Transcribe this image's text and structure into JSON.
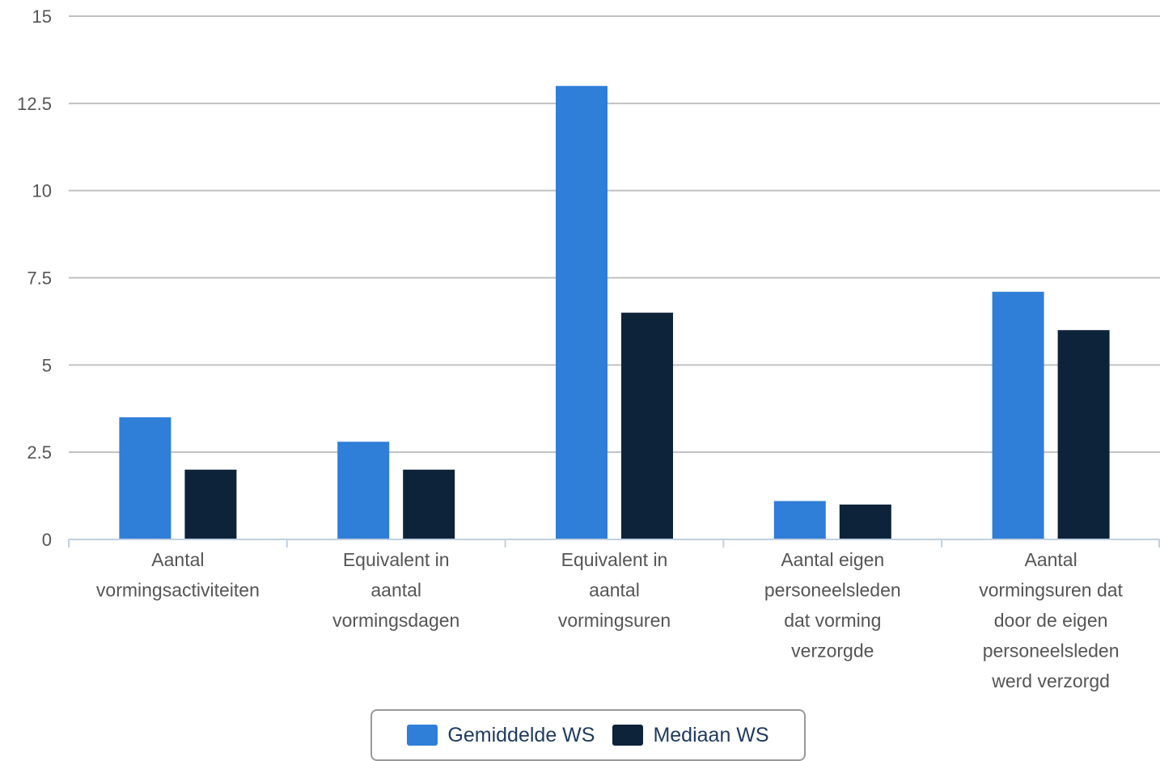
{
  "chart_data": {
    "type": "bar",
    "categories": [
      [
        "Aantal",
        "vormingsactiviteiten"
      ],
      [
        "Equivalent in",
        "aantal",
        "vormingsdagen"
      ],
      [
        "Equivalent in",
        "aantal",
        "vormingsuren"
      ],
      [
        "Aantal eigen",
        "personeelsleden",
        "dat vorming",
        "verzorgde"
      ],
      [
        "Aantal",
        "vormingsuren dat",
        "door de eigen",
        "personeelsleden",
        "werd verzorgd"
      ]
    ],
    "series": [
      {
        "name": "Gemiddelde WS",
        "color": "#2f7ed8",
        "values": [
          3.5,
          2.8,
          13.0,
          1.1,
          7.1
        ]
      },
      {
        "name": "Mediaan WS",
        "color": "#0d233a",
        "values": [
          2.0,
          2.0,
          6.5,
          1.0,
          6.0
        ]
      }
    ],
    "ylim": [
      0,
      15
    ],
    "yticks": [
      "0",
      "2.5",
      "5",
      "7.5",
      "10",
      "12.5",
      "15"
    ],
    "grid": true,
    "legend_position": "bottom-center"
  }
}
